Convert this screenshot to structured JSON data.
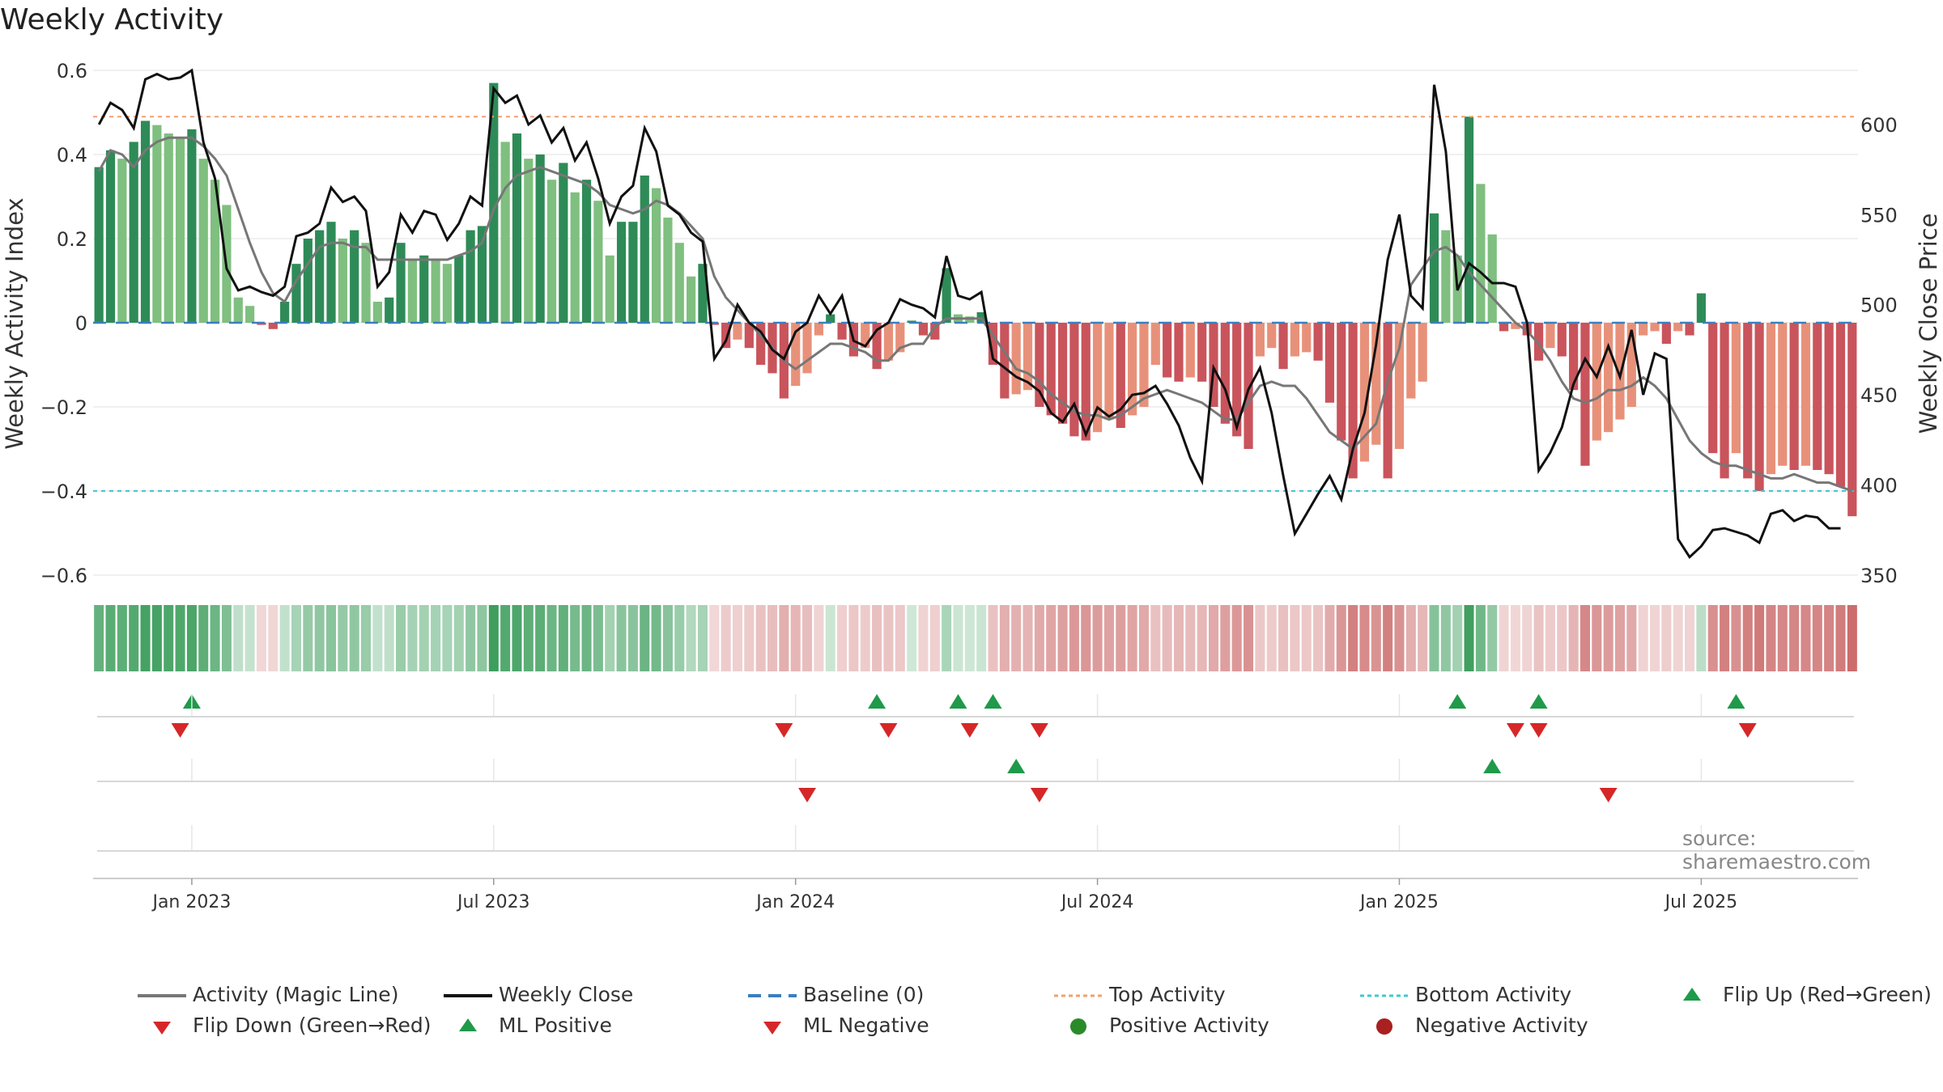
{
  "chart_data": {
    "type": "bar",
    "title": "Weekly Activity",
    "ylabel": "Weekly Activity Index",
    "y2label": "Weekly Close Price",
    "ylim": [
      -0.6,
      0.6
    ],
    "y2lim": [
      350,
      630
    ],
    "yticks": [
      "0.6",
      "0.4",
      "0.2",
      "0",
      "−0.2",
      "−0.4",
      "−0.6"
    ],
    "y2ticks": [
      "600",
      "550",
      "500",
      "450",
      "400",
      "350"
    ],
    "xticks": [
      "Jan 2023",
      "Jul 2023",
      "Jan 2024",
      "Jul 2024",
      "Jan 2025",
      "Jul 2025"
    ],
    "top_activity": 0.49,
    "bottom_activity": -0.4,
    "activity": [
      0.37,
      0.41,
      0.39,
      0.43,
      0.48,
      0.47,
      0.45,
      0.44,
      0.46,
      0.39,
      0.34,
      0.28,
      0.06,
      0.04,
      -0.005,
      -0.015,
      0.05,
      0.14,
      0.2,
      0.22,
      0.24,
      0.2,
      0.22,
      0.19,
      0.05,
      0.06,
      0.19,
      0.15,
      0.16,
      0.15,
      0.14,
      0.16,
      0.22,
      0.23,
      0.57,
      0.43,
      0.45,
      0.39,
      0.4,
      0.34,
      0.38,
      0.31,
      0.34,
      0.29,
      0.16,
      0.24,
      0.24,
      0.35,
      0.32,
      0.25,
      0.19,
      0.11,
      0.14,
      -0.005,
      -0.06,
      -0.04,
      -0.06,
      -0.1,
      -0.12,
      -0.18,
      -0.15,
      -0.12,
      -0.03,
      0.02,
      -0.04,
      -0.08,
      -0.06,
      -0.11,
      -0.09,
      -0.07,
      0.005,
      -0.03,
      -0.04,
      0.13,
      0.02,
      0.015,
      0.025,
      -0.1,
      -0.18,
      -0.17,
      -0.16,
      -0.2,
      -0.22,
      -0.24,
      -0.27,
      -0.28,
      -0.26,
      -0.23,
      -0.25,
      -0.22,
      -0.2,
      -0.1,
      -0.13,
      -0.14,
      -0.13,
      -0.14,
      -0.2,
      -0.24,
      -0.27,
      -0.3,
      -0.08,
      -0.06,
      -0.11,
      -0.08,
      -0.07,
      -0.09,
      -0.19,
      -0.28,
      -0.37,
      -0.33,
      -0.29,
      -0.37,
      -0.3,
      -0.18,
      -0.14,
      0.26,
      0.22,
      0.16,
      0.49,
      0.33,
      0.21,
      -0.02,
      -0.015,
      -0.03,
      -0.09,
      -0.06,
      -0.08,
      -0.16,
      -0.34,
      -0.28,
      -0.26,
      -0.23,
      -0.2,
      -0.03,
      -0.02,
      -0.05,
      -0.02,
      -0.03,
      0.07,
      -0.31,
      -0.37,
      -0.31,
      -0.37,
      -0.4,
      -0.36,
      -0.34,
      -0.35,
      -0.34,
      -0.35,
      -0.36,
      -0.39,
      -0.46
    ],
    "magic_line": [
      0.36,
      0.41,
      0.4,
      0.37,
      0.41,
      0.43,
      0.44,
      0.44,
      0.44,
      0.42,
      0.39,
      0.35,
      0.27,
      0.19,
      0.12,
      0.07,
      0.05,
      0.1,
      0.14,
      0.18,
      0.19,
      0.19,
      0.18,
      0.18,
      0.15,
      0.15,
      0.15,
      0.15,
      0.15,
      0.15,
      0.15,
      0.16,
      0.17,
      0.19,
      0.27,
      0.32,
      0.35,
      0.36,
      0.37,
      0.36,
      0.35,
      0.34,
      0.33,
      0.31,
      0.28,
      0.27,
      0.26,
      0.27,
      0.29,
      0.28,
      0.26,
      0.23,
      0.2,
      0.11,
      0.06,
      0.03,
      0.0,
      -0.03,
      -0.06,
      -0.09,
      -0.11,
      -0.09,
      -0.07,
      -0.05,
      -0.05,
      -0.06,
      -0.07,
      -0.09,
      -0.09,
      -0.06,
      -0.05,
      -0.05,
      -0.01,
      0.01,
      0.01,
      0.01,
      0.01,
      -0.03,
      -0.07,
      -0.11,
      -0.12,
      -0.14,
      -0.17,
      -0.19,
      -0.21,
      -0.22,
      -0.22,
      -0.23,
      -0.22,
      -0.2,
      -0.18,
      -0.17,
      -0.16,
      -0.17,
      -0.18,
      -0.19,
      -0.21,
      -0.23,
      -0.23,
      -0.19,
      -0.15,
      -0.14,
      -0.15,
      -0.15,
      -0.18,
      -0.22,
      -0.26,
      -0.28,
      -0.3,
      -0.27,
      -0.24,
      -0.14,
      -0.06,
      0.09,
      0.13,
      0.17,
      0.18,
      0.16,
      0.12,
      0.09,
      0.06,
      0.03,
      0.0,
      -0.02,
      -0.05,
      -0.09,
      -0.14,
      -0.18,
      -0.19,
      -0.18,
      -0.16,
      -0.16,
      -0.15,
      -0.13,
      -0.15,
      -0.18,
      -0.23,
      -0.28,
      -0.31,
      -0.33,
      -0.34,
      -0.34,
      -0.35,
      -0.36,
      -0.37,
      -0.37,
      -0.36,
      -0.37,
      -0.38,
      -0.38,
      -0.39,
      -0.4
    ],
    "weekly_close": [
      600,
      612,
      608,
      598,
      625,
      628,
      625,
      626,
      630,
      590,
      570,
      520,
      508,
      510,
      507,
      505,
      510,
      538,
      540,
      545,
      565,
      557,
      560,
      552,
      510,
      518,
      550,
      540,
      552,
      550,
      536,
      545,
      560,
      555,
      620,
      612,
      616,
      600,
      605,
      590,
      598,
      580,
      590,
      570,
      545,
      560,
      566,
      598,
      585,
      555,
      550,
      540,
      535,
      470,
      480,
      500,
      490,
      485,
      475,
      470,
      485,
      490,
      505,
      495,
      505,
      480,
      477,
      486,
      490,
      503,
      500,
      498,
      493,
      527,
      505,
      503,
      507,
      470,
      465,
      460,
      457,
      452,
      440,
      435,
      445,
      428,
      443,
      438,
      442,
      450,
      451,
      455,
      445,
      433,
      415,
      402,
      465,
      453,
      432,
      453,
      465,
      440,
      405,
      373,
      384,
      395,
      405,
      392,
      420,
      440,
      478,
      525,
      550,
      505,
      498,
      622,
      585,
      508,
      523,
      518,
      512,
      512,
      510,
      490,
      408,
      418,
      432,
      456,
      470,
      460,
      477,
      460,
      486,
      450,
      473,
      470,
      370,
      360,
      366,
      375,
      376,
      374,
      372,
      368,
      384,
      386,
      380,
      383,
      382,
      376,
      376
    ],
    "flip_up": [
      8,
      67,
      74,
      77,
      117,
      124,
      141
    ],
    "flip_down": [
      7,
      59,
      68,
      75,
      81,
      122,
      124,
      142
    ],
    "ml_positive": [
      79,
      120
    ],
    "ml_negative": [
      61,
      81,
      130
    ]
  },
  "legend": {
    "magic_line": "Activity (Magic Line)",
    "weekly_close": "Weekly Close",
    "baseline": "Baseline (0)",
    "top_activity": "Top Activity",
    "bottom_activity": "Bottom Activity",
    "flip_up": "Flip Up (Red→Green)",
    "flip_down": "Flip Down (Green→Red)",
    "ml_positive": "ML Positive",
    "ml_negative": "ML Negative",
    "positive_activity": "Positive Activity",
    "negative_activity": "Negative Activity"
  },
  "source": "source: sharemaestro.com",
  "colors": {
    "green_dark": "#2e8b57",
    "green_light": "#7fbf7f",
    "red_dark": "#c9545c",
    "red_light": "#e8917a",
    "magic_line": "#777777",
    "close": "#111111",
    "baseline": "#3a7fbf",
    "top": "#f0a070",
    "bottom": "#40c8d0",
    "marker_green": "#1f9a4a",
    "marker_red": "#d62728",
    "pos_dot": "#2a8a2a",
    "neg_dot": "#a82020"
  }
}
